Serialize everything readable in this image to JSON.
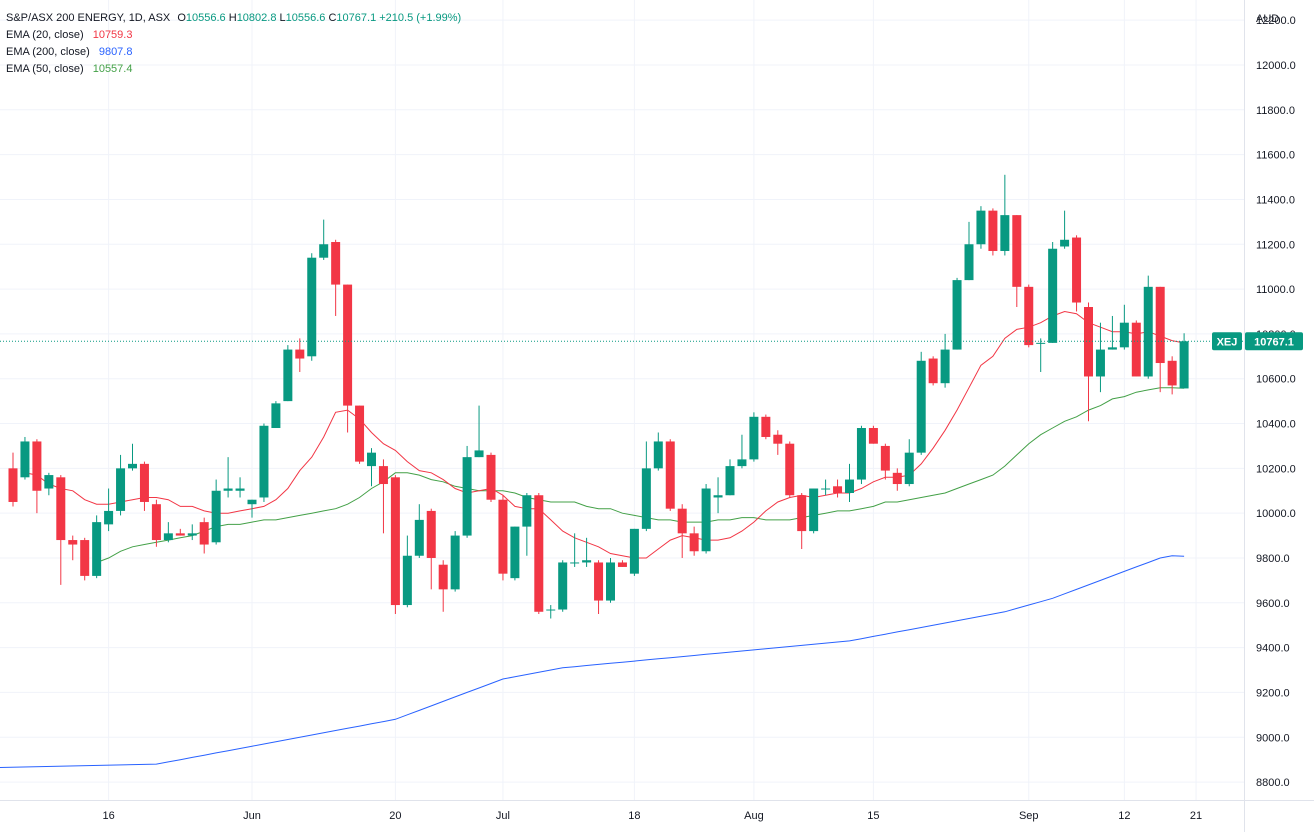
{
  "chart_data": {
    "type": "candlestick",
    "symbol": "S&P/ASX 200 ENERGY, 1D, ASX",
    "currency": "AUD",
    "ticker": "XEJ",
    "last_price": "10767.1",
    "ohlc": {
      "open_label": "O",
      "open": "10556.6",
      "high_label": "H",
      "high": "10802.8",
      "low_label": "L",
      "low": "10556.6",
      "close_label": "C",
      "close": "10767.1",
      "change": "+210.5 (+1.99%)"
    },
    "indicators": [
      {
        "name": "EMA (20, close)",
        "value": "10759.3",
        "color": "#f23645"
      },
      {
        "name": "EMA (200, close)",
        "value": "9807.8",
        "color": "#2962ff"
      },
      {
        "name": "EMA (50, close)",
        "value": "10557.4",
        "color": "#43a047"
      }
    ],
    "y_axis": {
      "min": 8720,
      "max": 12290,
      "ticks": [
        8800,
        9000,
        9200,
        9400,
        9600,
        9800,
        10000,
        10200,
        10400,
        10600,
        10800,
        11000,
        11200,
        11400,
        11600,
        11800,
        12000,
        12200
      ]
    },
    "x_axis": {
      "labels": [
        {
          "index": 8,
          "text": "16"
        },
        {
          "index": 20,
          "text": "Jun"
        },
        {
          "index": 32,
          "text": "20"
        },
        {
          "index": 41,
          "text": "Jul"
        },
        {
          "index": 52,
          "text": "18"
        },
        {
          "index": 62,
          "text": "Aug"
        },
        {
          "index": 72,
          "text": "15"
        },
        {
          "index": 85,
          "text": "Sep"
        },
        {
          "index": 93,
          "text": "12"
        },
        {
          "index": 99,
          "text": "21"
        }
      ]
    },
    "candles": [
      {
        "o": 10200,
        "h": 10270,
        "l": 10030,
        "c": 10050
      },
      {
        "o": 10160,
        "h": 10340,
        "l": 10150,
        "c": 10320
      },
      {
        "o": 10320,
        "h": 10330,
        "l": 10000,
        "c": 10100
      },
      {
        "o": 10110,
        "h": 10180,
        "l": 10080,
        "c": 10170
      },
      {
        "o": 10160,
        "h": 10170,
        "l": 9680,
        "c": 9880
      },
      {
        "o": 9880,
        "h": 9900,
        "l": 9790,
        "c": 9860
      },
      {
        "o": 9880,
        "h": 9890,
        "l": 9700,
        "c": 9720
      },
      {
        "o": 9720,
        "h": 9990,
        "l": 9710,
        "c": 9960
      },
      {
        "o": 9950,
        "h": 10110,
        "l": 9920,
        "c": 10010
      },
      {
        "o": 10010,
        "h": 10260,
        "l": 9990,
        "c": 10200
      },
      {
        "o": 10200,
        "h": 10310,
        "l": 10190,
        "c": 10220
      },
      {
        "o": 10220,
        "h": 10230,
        "l": 10010,
        "c": 10050
      },
      {
        "o": 10040,
        "h": 10060,
        "l": 9850,
        "c": 9880
      },
      {
        "o": 9880,
        "h": 9960,
        "l": 9870,
        "c": 9910
      },
      {
        "o": 9910,
        "h": 9930,
        "l": 9900,
        "c": 9900
      },
      {
        "o": 9900,
        "h": 9950,
        "l": 9880,
        "c": 9910
      },
      {
        "o": 9960,
        "h": 9980,
        "l": 9820,
        "c": 9860
      },
      {
        "o": 9870,
        "h": 10150,
        "l": 9860,
        "c": 10100
      },
      {
        "o": 10100,
        "h": 10250,
        "l": 10070,
        "c": 10110
      },
      {
        "o": 10100,
        "h": 10160,
        "l": 10070,
        "c": 10110
      },
      {
        "o": 10040,
        "h": 10060,
        "l": 9980,
        "c": 10060
      },
      {
        "o": 10070,
        "h": 10400,
        "l": 10050,
        "c": 10390
      },
      {
        "o": 10380,
        "h": 10500,
        "l": 10380,
        "c": 10490
      },
      {
        "o": 10500,
        "h": 10750,
        "l": 10500,
        "c": 10730
      },
      {
        "o": 10730,
        "h": 10780,
        "l": 10630,
        "c": 10690
      },
      {
        "o": 10700,
        "h": 11160,
        "l": 10680,
        "c": 11140
      },
      {
        "o": 11140,
        "h": 11310,
        "l": 11130,
        "c": 11200
      },
      {
        "o": 11210,
        "h": 11220,
        "l": 10880,
        "c": 11020
      },
      {
        "o": 11020,
        "h": 11020,
        "l": 10360,
        "c": 10480
      },
      {
        "o": 10480,
        "h": 10480,
        "l": 10220,
        "c": 10230
      },
      {
        "o": 10210,
        "h": 10290,
        "l": 10120,
        "c": 10270
      },
      {
        "o": 10210,
        "h": 10240,
        "l": 9910,
        "c": 10130
      },
      {
        "o": 10160,
        "h": 10170,
        "l": 9550,
        "c": 9590
      },
      {
        "o": 9590,
        "h": 9900,
        "l": 9580,
        "c": 9810
      },
      {
        "o": 9810,
        "h": 10040,
        "l": 9800,
        "c": 9970
      },
      {
        "o": 10010,
        "h": 10020,
        "l": 9660,
        "c": 9800
      },
      {
        "o": 9770,
        "h": 9790,
        "l": 9560,
        "c": 9660
      },
      {
        "o": 9660,
        "h": 9920,
        "l": 9650,
        "c": 9900
      },
      {
        "o": 9900,
        "h": 10300,
        "l": 9890,
        "c": 10250
      },
      {
        "o": 10250,
        "h": 10480,
        "l": 10250,
        "c": 10280
      },
      {
        "o": 10260,
        "h": 10270,
        "l": 10050,
        "c": 10060
      },
      {
        "o": 10060,
        "h": 10080,
        "l": 9700,
        "c": 9730
      },
      {
        "o": 9710,
        "h": 9940,
        "l": 9700,
        "c": 9940
      },
      {
        "o": 9940,
        "h": 10090,
        "l": 9810,
        "c": 10080
      },
      {
        "o": 10080,
        "h": 10090,
        "l": 9550,
        "c": 9560
      },
      {
        "o": 9570,
        "h": 9590,
        "l": 9530,
        "c": 9570
      },
      {
        "o": 9570,
        "h": 9790,
        "l": 9560,
        "c": 9780
      },
      {
        "o": 9780,
        "h": 9910,
        "l": 9760,
        "c": 9780
      },
      {
        "o": 9780,
        "h": 9890,
        "l": 9760,
        "c": 9790
      },
      {
        "o": 9780,
        "h": 9790,
        "l": 9550,
        "c": 9610
      },
      {
        "o": 9610,
        "h": 9800,
        "l": 9600,
        "c": 9780
      },
      {
        "o": 9780,
        "h": 9790,
        "l": 9760,
        "c": 9760
      },
      {
        "o": 9730,
        "h": 9930,
        "l": 9720,
        "c": 9930
      },
      {
        "o": 9930,
        "h": 10320,
        "l": 9920,
        "c": 10200
      },
      {
        "o": 10200,
        "h": 10360,
        "l": 10190,
        "c": 10320
      },
      {
        "o": 10320,
        "h": 10330,
        "l": 10010,
        "c": 10020
      },
      {
        "o": 10020,
        "h": 10040,
        "l": 9800,
        "c": 9910
      },
      {
        "o": 9910,
        "h": 9940,
        "l": 9810,
        "c": 9830
      },
      {
        "o": 9830,
        "h": 10130,
        "l": 9820,
        "c": 10110
      },
      {
        "o": 10070,
        "h": 10160,
        "l": 10000,
        "c": 10080
      },
      {
        "o": 10080,
        "h": 10240,
        "l": 10080,
        "c": 10210
      },
      {
        "o": 10210,
        "h": 10350,
        "l": 10200,
        "c": 10240
      },
      {
        "o": 10240,
        "h": 10450,
        "l": 10230,
        "c": 10430
      },
      {
        "o": 10430,
        "h": 10440,
        "l": 10330,
        "c": 10340
      },
      {
        "o": 10350,
        "h": 10370,
        "l": 10260,
        "c": 10310
      },
      {
        "o": 10310,
        "h": 10320,
        "l": 10070,
        "c": 10080
      },
      {
        "o": 10080,
        "h": 10090,
        "l": 9840,
        "c": 9920
      },
      {
        "o": 9920,
        "h": 10110,
        "l": 9910,
        "c": 10110
      },
      {
        "o": 10110,
        "h": 10150,
        "l": 10080,
        "c": 10110
      },
      {
        "o": 10120,
        "h": 10150,
        "l": 10070,
        "c": 10090
      },
      {
        "o": 10090,
        "h": 10220,
        "l": 10050,
        "c": 10150
      },
      {
        "o": 10150,
        "h": 10390,
        "l": 10130,
        "c": 10380
      },
      {
        "o": 10380,
        "h": 10390,
        "l": 10310,
        "c": 10310
      },
      {
        "o": 10300,
        "h": 10310,
        "l": 10150,
        "c": 10190
      },
      {
        "o": 10180,
        "h": 10200,
        "l": 10100,
        "c": 10130
      },
      {
        "o": 10130,
        "h": 10330,
        "l": 10120,
        "c": 10270
      },
      {
        "o": 10270,
        "h": 10720,
        "l": 10260,
        "c": 10680
      },
      {
        "o": 10690,
        "h": 10700,
        "l": 10570,
        "c": 10580
      },
      {
        "o": 10580,
        "h": 10800,
        "l": 10560,
        "c": 10730
      },
      {
        "o": 10730,
        "h": 11050,
        "l": 10730,
        "c": 11040
      },
      {
        "o": 11040,
        "h": 11300,
        "l": 11040,
        "c": 11200
      },
      {
        "o": 11200,
        "h": 11370,
        "l": 11180,
        "c": 11350
      },
      {
        "o": 11350,
        "h": 11360,
        "l": 11150,
        "c": 11170
      },
      {
        "o": 11170,
        "h": 11510,
        "l": 11150,
        "c": 11330
      },
      {
        "o": 11330,
        "h": 11330,
        "l": 10920,
        "c": 11010
      },
      {
        "o": 11010,
        "h": 11020,
        "l": 10740,
        "c": 10750
      },
      {
        "o": 10760,
        "h": 10780,
        "l": 10630,
        "c": 10760
      },
      {
        "o": 10760,
        "h": 11210,
        "l": 10760,
        "c": 11180
      },
      {
        "o": 11190,
        "h": 11350,
        "l": 11180,
        "c": 11220
      },
      {
        "o": 11230,
        "h": 11240,
        "l": 10900,
        "c": 10940
      },
      {
        "o": 10920,
        "h": 10940,
        "l": 10410,
        "c": 10610
      },
      {
        "o": 10610,
        "h": 10850,
        "l": 10540,
        "c": 10730
      },
      {
        "o": 10730,
        "h": 10880,
        "l": 10730,
        "c": 10740
      },
      {
        "o": 10740,
        "h": 10930,
        "l": 10730,
        "c": 10850
      },
      {
        "o": 10850,
        "h": 10860,
        "l": 10610,
        "c": 10610
      },
      {
        "o": 10610,
        "h": 11060,
        "l": 10600,
        "c": 11010
      },
      {
        "o": 11010,
        "h": 11010,
        "l": 10540,
        "c": 10670
      },
      {
        "o": 10680,
        "h": 10700,
        "l": 10530,
        "c": 10570
      },
      {
        "o": 10556.6,
        "h": 10802.8,
        "l": 10556.6,
        "c": 10767.1
      }
    ],
    "ema20": [
      10180,
      10170,
      10130,
      10110,
      10100,
      10060,
      10040,
      10040,
      10050,
      10060,
      10070,
      10070,
      10060,
      10030,
      10030,
      10010,
      10000,
      10000,
      10010,
      10020,
      10030,
      10060,
      10110,
      10190,
      10250,
      10340,
      10450,
      10460,
      10420,
      10360,
      10310,
      10280,
      10230,
      10190,
      10180,
      10150,
      10110,
      10090,
      10100,
      10110,
      10080,
      10030,
      10020,
      10020,
      9970,
      9920,
      9890,
      9870,
      9850,
      9820,
      9810,
      9800,
      9800,
      9840,
      9880,
      9900,
      9890,
      9880,
      9880,
      9890,
      9920,
      9960,
      10010,
      10050,
      10070,
      10080,
      10070,
      10080,
      10090,
      10090,
      10110,
      10140,
      10160,
      10160,
      10170,
      10220,
      10290,
      10370,
      10460,
      10560,
      10660,
      10700,
      10780,
      10820,
      10830,
      10850,
      10880,
      10900,
      10890,
      10850,
      10830,
      10810,
      10810,
      10800,
      10810,
      10790,
      10770,
      10759.3
    ],
    "ema50": [
      9780,
      9800,
      9830,
      9850,
      9860,
      9870,
      9880,
      9890,
      9900,
      9920,
      9940,
      9950,
      9950,
      9960,
      9970,
      9970,
      9980,
      9990,
      10000,
      10010,
      10020,
      10040,
      10070,
      10110,
      10140,
      10180,
      10180,
      10170,
      10150,
      10140,
      10120,
      10110,
      10100,
      10100,
      10100,
      10090,
      10070,
      10060,
      10050,
      10050,
      10050,
      10030,
      10020,
      10020,
      10000,
      9990,
      9980,
      9970,
      9970,
      9960,
      9960,
      9960,
      9970,
      9970,
      9980,
      9980,
      9970,
      9970,
      9970,
      9980,
      9990,
      10000,
      10010,
      10010,
      10020,
      10030,
      10050,
      10050,
      10060,
      10070,
      10080,
      10090,
      10110,
      10130,
      10150,
      10170,
      10210,
      10260,
      10310,
      10350,
      10380,
      10410,
      10430,
      10460,
      10480,
      10510,
      10520,
      10540,
      10550,
      10560,
      10560,
      10557.4
    ],
    "ema200": [
      8880,
      8890,
      8900,
      8910,
      8920,
      8930,
      8940,
      8950,
      8960,
      8970,
      8980,
      8990,
      9000,
      9010,
      9020,
      9030,
      9040,
      9050,
      9060,
      9070,
      9080,
      9100,
      9120,
      9140,
      9160,
      9180,
      9200,
      9220,
      9240,
      9260,
      9270,
      9280,
      9290,
      9300,
      9310,
      9315,
      9320,
      9325,
      9330,
      9335,
      9340,
      9345,
      9350,
      9355,
      9360,
      9365,
      9370,
      9375,
      9380,
      9385,
      9390,
      9395,
      9400,
      9405,
      9410,
      9415,
      9420,
      9425,
      9430,
      9440,
      9450,
      9460,
      9470,
      9480,
      9490,
      9500,
      9510,
      9520,
      9530,
      9540,
      9550,
      9560,
      9575,
      9590,
      9605,
      9620,
      9640,
      9660,
      9680,
      9700,
      9720,
      9740,
      9760,
      9780,
      9800,
      9810,
      9807.8
    ]
  }
}
